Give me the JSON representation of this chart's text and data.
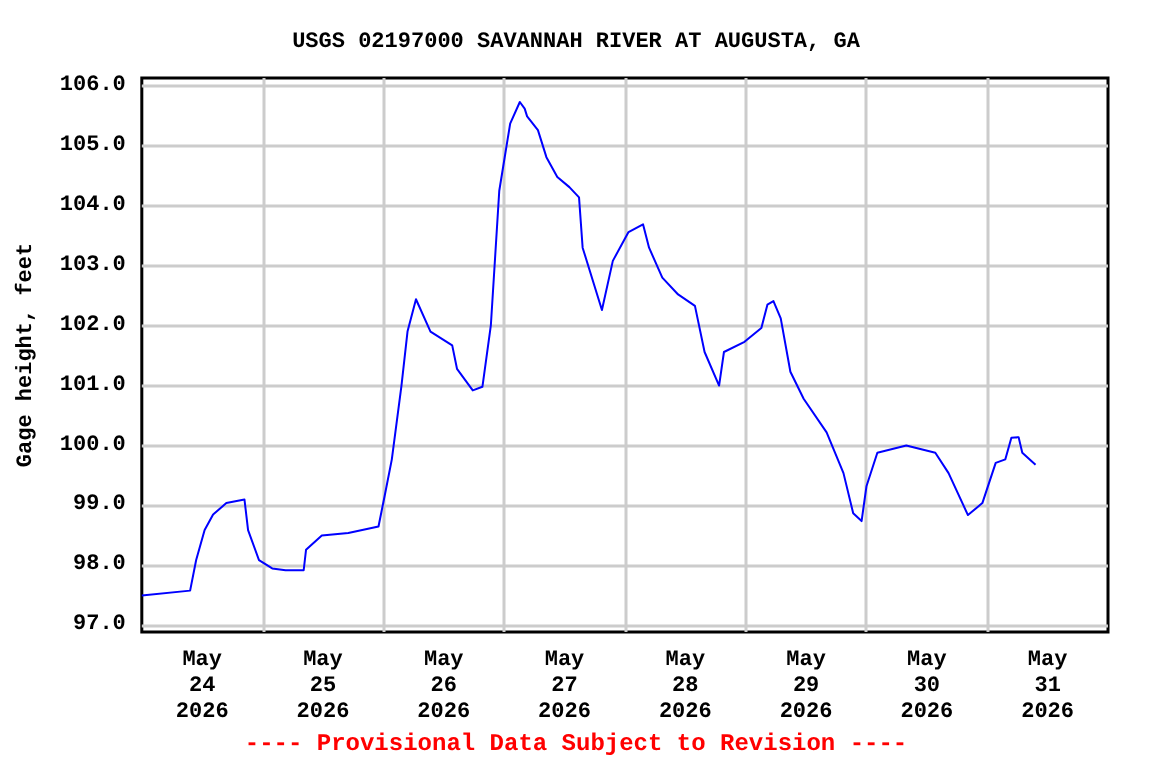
{
  "chart_data": {
    "type": "line",
    "title": "USGS 02197000 SAVANNAH RIVER AT AUGUSTA, GA",
    "ylabel": "Gage height, feet",
    "annotations": [
      "---- Provisional Data Subject to Revision ----"
    ],
    "x": [
      "2026-05-24T00:00",
      "2026-05-24T09:36",
      "2026-05-24T10:48",
      "2026-05-24T12:29",
      "2026-05-24T14:10",
      "2026-05-24T16:48",
      "2026-05-24T20:24",
      "2026-05-24T21:07",
      "2026-05-24T23:17",
      "2026-05-25T01:55",
      "2026-05-25T04:34",
      "2026-05-25T08:10",
      "2026-05-25T08:38",
      "2026-05-25T11:46",
      "2026-05-25T17:02",
      "2026-05-25T23:02",
      "2026-05-26T00:14",
      "2026-05-26T01:41",
      "2026-05-26T03:36",
      "2026-05-26T04:48",
      "2026-05-26T06:29",
      "2026-05-26T09:22",
      "2026-05-26T13:41",
      "2026-05-26T14:38",
      "2026-05-26T17:46",
      "2026-05-26T19:41",
      "2026-05-26T21:22",
      "2026-05-26T23:02",
      "2026-05-27T01:12",
      "2026-05-27T03:07",
      "2026-05-27T04:05",
      "2026-05-27T04:34",
      "2026-05-27T06:43",
      "2026-05-27T08:24",
      "2026-05-27T10:34",
      "2026-05-27T12:58",
      "2026-05-27T14:53",
      "2026-05-27T15:36",
      "2026-05-27T19:26",
      "2026-05-27T21:36",
      "2026-05-28T00:43",
      "2026-05-28T03:36",
      "2026-05-28T04:48",
      "2026-05-28T07:26",
      "2026-05-28T10:34",
      "2026-05-28T13:55",
      "2026-05-28T15:50",
      "2026-05-28T18:43",
      "2026-05-28T19:41",
      "2026-05-28T23:46",
      "2026-05-29T03:07",
      "2026-05-29T04:19",
      "2026-05-29T05:31",
      "2026-05-29T06:58",
      "2026-05-29T08:53",
      "2026-05-29T11:31",
      "2026-05-29T16:05",
      "2026-05-29T19:26",
      "2026-05-29T21:22",
      "2026-05-29T23:02",
      "2026-05-30T00:00",
      "2026-05-30T02:10",
      "2026-05-30T07:55",
      "2026-05-30T13:41",
      "2026-05-30T16:19",
      "2026-05-30T20:10",
      "2026-05-30T23:02",
      "2026-05-31T01:41",
      "2026-05-31T03:36",
      "2026-05-31T04:48",
      "2026-05-31T06:14",
      "2026-05-31T06:58",
      "2026-05-31T09:36"
    ],
    "series": [
      {
        "color": "#0000ff",
        "values": [
          97.5,
          97.58,
          98.09,
          98.59,
          98.85,
          99.04,
          99.1,
          98.59,
          98.09,
          97.95,
          97.92,
          97.92,
          98.26,
          98.5,
          98.54,
          98.65,
          99.15,
          99.77,
          101.0,
          101.9,
          102.44,
          101.9,
          101.67,
          101.28,
          100.92,
          100.98,
          102.01,
          104.25,
          105.37,
          105.73,
          105.62,
          105.49,
          105.26,
          104.81,
          104.48,
          104.31,
          104.14,
          103.3,
          102.26,
          103.08,
          103.56,
          103.69,
          103.3,
          102.8,
          102.52,
          102.33,
          101.56,
          101.0,
          101.56,
          101.73,
          101.96,
          102.35,
          102.41,
          102.12,
          101.23,
          100.78,
          100.22,
          99.54,
          98.87,
          98.74,
          99.32,
          99.88,
          100.0,
          99.88,
          99.54,
          98.84,
          99.04,
          99.71,
          99.77,
          100.13,
          100.14,
          99.88,
          99.68
        ]
      }
    ],
    "xlim": [
      "2026-05-24",
      "2026-06-01"
    ],
    "xticks": [
      {
        "value": "2026-05-24T12:00",
        "label": "May\n24\n2026"
      },
      {
        "value": "2026-05-25T12:00",
        "label": "May\n25\n2026"
      },
      {
        "value": "2026-05-26T12:00",
        "label": "May\n26\n2026"
      },
      {
        "value": "2026-05-27T12:00",
        "label": "May\n27\n2026"
      },
      {
        "value": "2026-05-28T12:00",
        "label": "May\n28\n2026"
      },
      {
        "value": "2026-05-29T12:00",
        "label": "May\n29\n2026"
      },
      {
        "value": "2026-05-30T12:00",
        "label": "May\n30\n2026"
      },
      {
        "value": "2026-05-31T12:00",
        "label": "May\n31\n2026"
      },
      {
        "value": "2026-05-25",
        "label": null
      },
      {
        "value": "2026-05-26",
        "label": null
      },
      {
        "value": "2026-05-27",
        "label": null
      },
      {
        "value": "2026-05-28",
        "label": null
      },
      {
        "value": "2026-05-29",
        "label": null
      },
      {
        "value": "2026-05-30",
        "label": null
      },
      {
        "value": "2026-05-31",
        "label": null
      }
    ],
    "ylim": [
      96.89,
      106.13
    ],
    "yticks": [
      {
        "value": 97,
        "label": "97.0"
      },
      {
        "value": 98,
        "label": "98.0"
      },
      {
        "value": 99,
        "label": "99.0"
      },
      {
        "value": 100,
        "label": "100.0"
      },
      {
        "value": 101,
        "label": "101.0"
      },
      {
        "value": 102,
        "label": "102.0"
      },
      {
        "value": 103,
        "label": "103.0"
      },
      {
        "value": 104,
        "label": "104.0"
      },
      {
        "value": 105,
        "label": "105.0"
      },
      {
        "value": 106,
        "label": "106.0"
      }
    ],
    "grid": true,
    "marker": "none",
    "line_style": "solid"
  }
}
